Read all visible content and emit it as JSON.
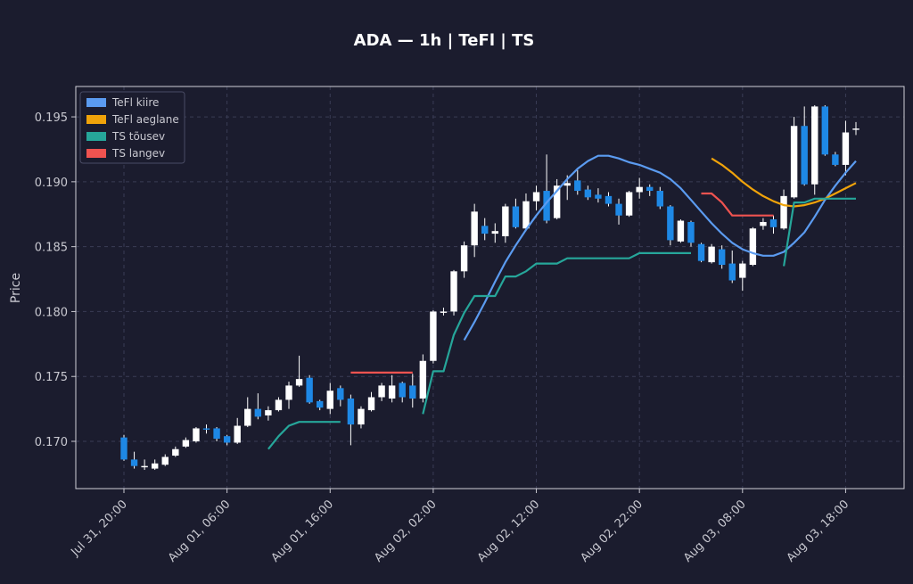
{
  "chart_data": {
    "type": "candlestick",
    "title": "ADA — 1h  |  TeFl  |  TS",
    "ylabel": "Price",
    "categories": [
      "Jul 31, 20:00",
      null,
      null,
      null,
      null,
      null,
      null,
      null,
      null,
      null,
      "Aug 01, 06:00",
      null,
      null,
      null,
      null,
      null,
      null,
      null,
      null,
      null,
      "Aug 01, 16:00",
      null,
      null,
      null,
      null,
      null,
      null,
      null,
      null,
      null,
      "Aug 02, 02:00",
      null,
      null,
      null,
      null,
      null,
      null,
      null,
      null,
      null,
      "Aug 02, 12:00",
      null,
      null,
      null,
      null,
      null,
      null,
      null,
      null,
      null,
      "Aug 02, 22:00",
      null,
      null,
      null,
      null,
      null,
      null,
      null,
      null,
      null,
      "Aug 03, 08:00",
      null,
      null,
      null,
      null,
      null,
      null,
      null,
      null,
      null,
      "Aug 03, 18:00",
      null
    ],
    "open": [
      0.1703,
      0.1686,
      0.168,
      0.1679,
      0.1682,
      0.1689,
      0.1696,
      0.17,
      0.171,
      0.171,
      0.1704,
      0.1699,
      0.1712,
      0.1725,
      0.172,
      0.1724,
      0.1732,
      0.1743,
      0.1749,
      0.1731,
      0.1725,
      0.1741,
      0.1733,
      0.1713,
      0.1724,
      0.1734,
      0.1733,
      0.1745,
      0.1743,
      0.1733,
      0.1762,
      0.1799,
      0.18,
      0.1831,
      0.1851,
      0.1866,
      0.186,
      0.1858,
      0.1881,
      0.1864,
      0.1885,
      0.1893,
      0.1872,
      0.1897,
      0.1901,
      0.1894,
      0.189,
      0.1889,
      0.1883,
      0.1874,
      0.1892,
      0.1896,
      0.1893,
      0.1881,
      0.1854,
      0.1869,
      0.1852,
      0.1838,
      0.1848,
      0.1837,
      0.1826,
      0.1836,
      0.1866,
      0.1871,
      0.1864,
      0.1888,
      0.1943,
      0.1898,
      0.1958,
      0.1921,
      0.1913,
      0.194
    ],
    "high": [
      0.1705,
      0.1692,
      0.1686,
      0.1686,
      0.169,
      0.1696,
      0.1703,
      0.1711,
      0.1713,
      0.1711,
      0.1705,
      0.1718,
      0.1734,
      0.1737,
      0.1727,
      0.1734,
      0.1746,
      0.1766,
      0.1751,
      0.1732,
      0.1745,
      0.1743,
      0.1736,
      0.1727,
      0.1738,
      0.1745,
      0.1751,
      0.1746,
      0.1752,
      0.1767,
      0.1801,
      0.1803,
      0.1832,
      0.1854,
      0.1883,
      0.1872,
      0.1868,
      0.1883,
      0.1887,
      0.1891,
      0.1897,
      0.1921,
      0.1902,
      0.1905,
      0.1909,
      0.1897,
      0.1895,
      0.1892,
      0.1887,
      0.1893,
      0.1903,
      0.1898,
      0.1896,
      0.1882,
      0.1871,
      0.187,
      0.1853,
      0.1852,
      0.1851,
      0.1847,
      0.1839,
      0.1865,
      0.1872,
      0.1874,
      0.1894,
      0.195,
      0.1958,
      0.1959,
      0.1959,
      0.1923,
      0.1947,
      0.1946
    ],
    "low": [
      0.1685,
      0.1679,
      0.1678,
      0.1678,
      0.1681,
      0.1688,
      0.1695,
      0.1699,
      0.1706,
      0.17,
      0.1697,
      0.1698,
      0.1711,
      0.1717,
      0.1716,
      0.1723,
      0.1725,
      0.1742,
      0.1729,
      0.1724,
      0.1721,
      0.1727,
      0.1697,
      0.171,
      0.1723,
      0.1731,
      0.173,
      0.173,
      0.1726,
      0.173,
      0.176,
      0.1797,
      0.1797,
      0.1826,
      0.1842,
      0.1855,
      0.1853,
      0.1853,
      0.1864,
      0.1862,
      0.1878,
      0.1868,
      0.1871,
      0.1886,
      0.189,
      0.1886,
      0.1884,
      0.1881,
      0.1867,
      0.1873,
      0.1887,
      0.1889,
      0.1879,
      0.1851,
      0.1853,
      0.185,
      0.1838,
      0.1837,
      0.1833,
      0.1822,
      0.1816,
      0.1835,
      0.1863,
      0.186,
      0.1863,
      0.1887,
      0.1897,
      0.189,
      0.192,
      0.1912,
      0.1905,
      0.1936
    ],
    "close": [
      0.1686,
      0.1681,
      0.1681,
      0.1683,
      0.1688,
      0.1694,
      0.1701,
      0.171,
      0.1709,
      0.1702,
      0.1699,
      0.1712,
      0.1725,
      0.1719,
      0.1724,
      0.1732,
      0.1743,
      0.1748,
      0.173,
      0.1726,
      0.1739,
      0.1732,
      0.1713,
      0.1725,
      0.1734,
      0.1743,
      0.1743,
      0.1734,
      0.1733,
      0.1762,
      0.18,
      0.18,
      0.1831,
      0.1851,
      0.1877,
      0.186,
      0.1862,
      0.1881,
      0.1865,
      0.1885,
      0.1892,
      0.187,
      0.1897,
      0.1899,
      0.1893,
      0.1888,
      0.1887,
      0.1883,
      0.1874,
      0.1892,
      0.1896,
      0.1893,
      0.1881,
      0.1855,
      0.187,
      0.1853,
      0.1839,
      0.185,
      0.1836,
      0.1824,
      0.1837,
      0.1864,
      0.1869,
      0.1865,
      0.1889,
      0.1943,
      0.1898,
      0.1958,
      0.1921,
      0.1913,
      0.1938,
      0.1941
    ],
    "up_color": "#ffffff",
    "down_color": "#1e88e5",
    "series": [
      {
        "name": "TeFl kiire",
        "color": "#5b9bf0",
        "values": [
          null,
          null,
          null,
          null,
          null,
          null,
          null,
          null,
          null,
          null,
          null,
          null,
          null,
          null,
          null,
          null,
          null,
          null,
          null,
          null,
          null,
          null,
          null,
          null,
          null,
          null,
          null,
          null,
          null,
          null,
          null,
          null,
          null,
          0.1778,
          0.1792,
          0.1807,
          0.1823,
          0.1838,
          0.1851,
          0.1863,
          0.1874,
          0.1884,
          0.1893,
          0.1902,
          0.191,
          0.1916,
          0.192,
          0.192,
          0.1918,
          0.1915,
          0.1913,
          0.191,
          0.1907,
          0.1902,
          0.1895,
          0.1886,
          0.1877,
          0.1868,
          0.186,
          0.1853,
          0.1848,
          0.1845,
          0.1843,
          0.1843,
          0.1846,
          0.1853,
          0.1861,
          0.1873,
          0.1886,
          0.1897,
          0.1907,
          0.1916
        ]
      },
      {
        "name": "TeFl aeglane",
        "color": "#f0a30a",
        "values": [
          null,
          null,
          null,
          null,
          null,
          null,
          null,
          null,
          null,
          null,
          null,
          null,
          null,
          null,
          null,
          null,
          null,
          null,
          null,
          null,
          null,
          null,
          null,
          null,
          null,
          null,
          null,
          null,
          null,
          null,
          null,
          null,
          null,
          null,
          null,
          null,
          null,
          null,
          null,
          null,
          null,
          null,
          null,
          null,
          null,
          null,
          null,
          null,
          null,
          null,
          null,
          null,
          null,
          null,
          null,
          null,
          null,
          0.1918,
          0.1913,
          0.1907,
          0.19,
          0.1894,
          0.1889,
          0.1885,
          0.1882,
          0.1881,
          0.1882,
          0.1884,
          0.1887,
          0.1891,
          0.1895,
          0.1899
        ]
      },
      {
        "name": "TS tõusev",
        "color": "#26a69a",
        "values": [
          null,
          null,
          null,
          null,
          null,
          null,
          null,
          null,
          null,
          null,
          null,
          null,
          null,
          null,
          0.1694,
          0.1704,
          0.1712,
          0.1715,
          0.1715,
          0.1715,
          0.1715,
          0.1715,
          null,
          null,
          null,
          null,
          null,
          null,
          null,
          0.1721,
          0.1754,
          0.1754,
          0.1782,
          0.1799,
          0.1812,
          0.1812,
          0.1812,
          0.1827,
          0.1827,
          0.1831,
          0.1837,
          0.1837,
          0.1837,
          0.1841,
          0.1841,
          0.1841,
          0.1841,
          0.1841,
          0.1841,
          0.1841,
          0.1845,
          0.1845,
          0.1845,
          0.1845,
          0.1845,
          0.1845,
          null,
          null,
          null,
          null,
          null,
          null,
          null,
          null,
          0.1835,
          0.1884,
          0.1884,
          0.1887,
          0.1887,
          0.1887,
          0.1887,
          0.1887
        ]
      },
      {
        "name": "TS langev",
        "color": "#ef5350",
        "values": [
          null,
          null,
          null,
          null,
          null,
          null,
          null,
          null,
          null,
          null,
          null,
          null,
          null,
          null,
          null,
          null,
          null,
          null,
          null,
          null,
          null,
          null,
          0.1753,
          0.1753,
          0.1753,
          0.1753,
          0.1753,
          0.1753,
          0.1753,
          null,
          null,
          null,
          null,
          null,
          null,
          null,
          null,
          null,
          null,
          null,
          null,
          null,
          null,
          null,
          null,
          null,
          null,
          null,
          null,
          null,
          null,
          null,
          null,
          null,
          null,
          null,
          0.1891,
          0.1891,
          0.1884,
          0.1874,
          0.1874,
          0.1874,
          0.1874,
          0.1874,
          null,
          null,
          null,
          null,
          null,
          null,
          null,
          null
        ]
      }
    ],
    "ylim": [
      0.16636,
      0.19734
    ],
    "yticks": [
      {
        "value": 0.17,
        "label": "0.170"
      },
      0.175,
      {
        "value": 0.18,
        "label": "0.180"
      },
      0.185,
      {
        "value": 0.19,
        "label": "0.190"
      },
      0.195
    ],
    "grid": true,
    "legend": "upper left"
  }
}
